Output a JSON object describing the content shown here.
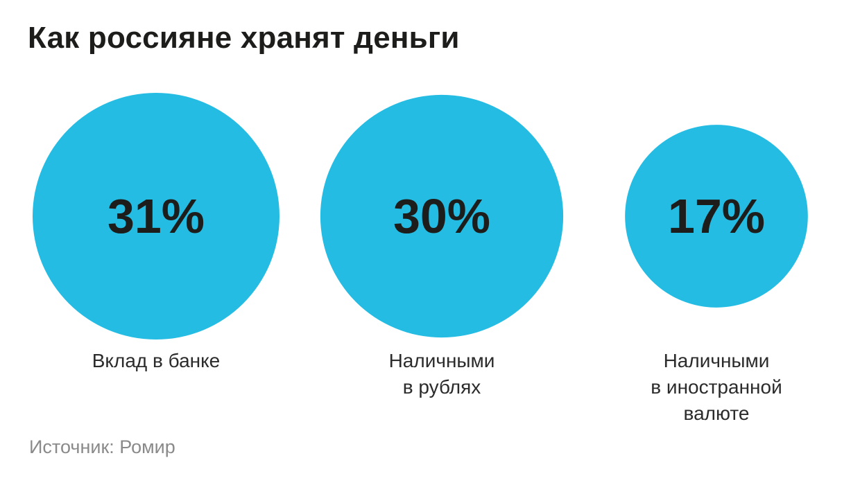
{
  "title": "Как россияне хранят деньги",
  "source": "Источник: Ромир",
  "colors": {
    "bubble": "#25bce3",
    "value_text": "#1d1d1b",
    "label_text": "#2b2b2b"
  },
  "chart_data": {
    "type": "bubble",
    "unit": "%",
    "items": [
      {
        "value": 31,
        "value_label": "31%",
        "label_lines": [
          "Вклад в банке"
        ]
      },
      {
        "value": 30,
        "value_label": "30%",
        "label_lines": [
          "Наличными",
          "в рублях"
        ]
      },
      {
        "value": 17,
        "value_label": "17%",
        "label_lines": [
          "Наличными",
          "в иностранной",
          "валюте"
        ]
      }
    ]
  }
}
